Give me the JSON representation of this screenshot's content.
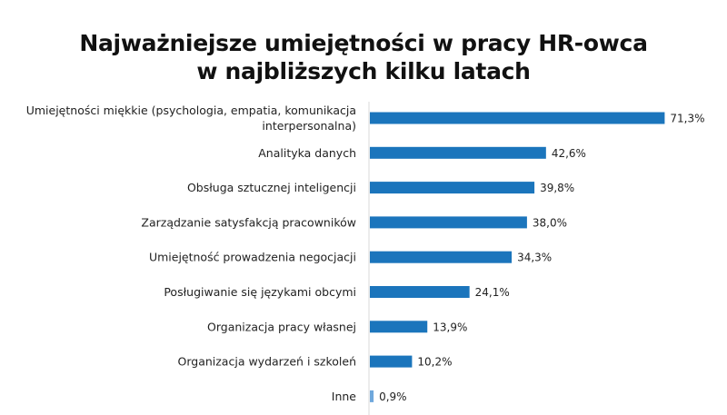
{
  "chart_data": {
    "type": "bar",
    "orientation": "horizontal",
    "title_lines": [
      "Najważniejsze umiejętności w pracy HR-owca",
      "w najbliższych kilku latach"
    ],
    "categories": [
      [
        "Umiejętności miękkie (psychologia, empatia, komunikacja",
        "interpersonalna)"
      ],
      [
        "Analityka danych"
      ],
      [
        "Obsługa sztucznej inteligencji"
      ],
      [
        "Zarządzanie satysfakcją pracowników"
      ],
      [
        "Umiejętność prowadzenia negocjacji"
      ],
      [
        "Posługiwanie się językami obcymi"
      ],
      [
        "Organizacja pracy własnej"
      ],
      [
        "Organizacja wydarzeń i szkoleń"
      ],
      [
        "Inne"
      ]
    ],
    "values": [
      71.3,
      42.6,
      39.8,
      38.0,
      34.3,
      24.1,
      13.9,
      10.2,
      0.9
    ],
    "value_labels": [
      "71,3%",
      "42,6%",
      "39,8%",
      "38,0%",
      "34,3%",
      "24,1%",
      "13,9%",
      "10,2%",
      "0,9%"
    ],
    "bar_colors": [
      "#1b75bc",
      "#1b75bc",
      "#1b75bc",
      "#1b75bc",
      "#1b75bc",
      "#1b75bc",
      "#1b75bc",
      "#1b75bc",
      "#6fa8dc"
    ],
    "axis_color": "#d9d9d9",
    "grid": false,
    "legend": "none"
  }
}
